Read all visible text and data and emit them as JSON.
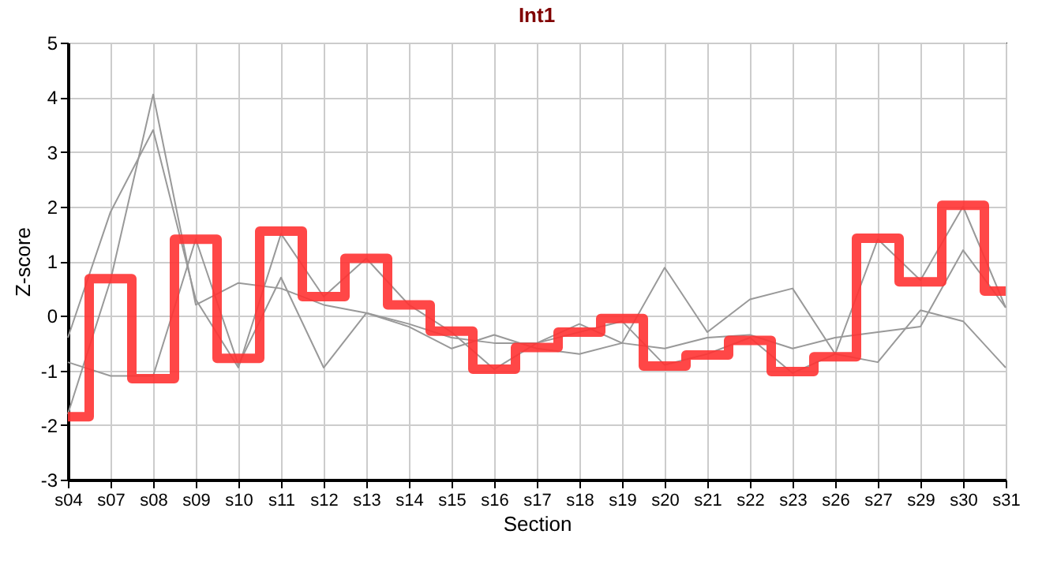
{
  "chart_data": {
    "type": "line",
    "title": "Int1",
    "xlabel": "Section",
    "ylabel": "Z-score",
    "categories": [
      "s04",
      "s07",
      "s08",
      "s09",
      "s10",
      "s11",
      "s12",
      "s13",
      "s14",
      "s15",
      "s16",
      "s17",
      "s18",
      "s19",
      "s20",
      "s21",
      "s22",
      "s23",
      "s26",
      "s27",
      "s29",
      "s30",
      "s31"
    ],
    "ylim": [
      -3,
      5
    ],
    "yticks": [
      -3,
      -2,
      -1,
      0,
      1,
      2,
      3,
      4,
      5
    ],
    "grid": true,
    "series": [
      {
        "color": "#999999",
        "values": [
          -0.4,
          1.9,
          3.4,
          0.3,
          -0.95,
          1.5,
          0.35,
          1.05,
          0.2,
          -0.3,
          -0.98,
          -0.5,
          -0.15,
          -0.5,
          0.88,
          -0.3,
          0.3,
          0.5,
          -0.7,
          1.4,
          0.65,
          2.0,
          0.15
        ]
      },
      {
        "color": "#999999",
        "values": [
          -1.8,
          0.65,
          4.05,
          0.2,
          0.6,
          0.5,
          0.2,
          0.05,
          -0.2,
          -0.6,
          -0.35,
          -0.6,
          -0.7,
          -0.5,
          -0.6,
          -0.4,
          -0.35,
          -0.6,
          -0.4,
          -0.3,
          -0.2,
          1.2,
          0.15
        ]
      },
      {
        "color": "#999999",
        "values": [
          -0.85,
          -1.1,
          -1.1,
          1.4,
          -0.9,
          0.7,
          -0.95,
          0.05,
          -0.15,
          -0.4,
          -0.5,
          -0.5,
          -0.3,
          -0.1,
          -0.9,
          -0.7,
          -0.4,
          -1.05,
          -0.7,
          -0.85,
          0.1,
          -0.1,
          -0.95
        ]
      },
      {
        "type": "step",
        "color": "#ff3333",
        "values": [
          -1.85,
          0.68,
          -1.15,
          1.4,
          -0.78,
          1.55,
          0.35,
          1.05,
          0.2,
          -0.28,
          -0.98,
          -0.58,
          -0.3,
          -0.05,
          -0.92,
          -0.72,
          -0.45,
          -1.02,
          -0.75,
          1.42,
          0.62,
          2.02,
          0.45
        ]
      }
    ]
  }
}
